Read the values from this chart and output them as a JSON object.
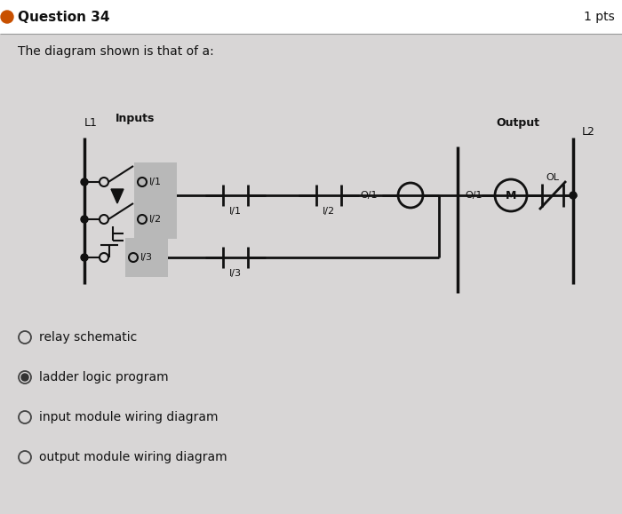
{
  "title": "Question 34",
  "pts": "1 pts",
  "subtitle": "The diagram shown is that of a:",
  "inputs_label": "Inputs",
  "output_label": "Output",
  "L1_label": "L1",
  "L2_label": "L2",
  "options": [
    {
      "text": "relay schematic",
      "selected": false
    },
    {
      "text": "ladder logic program",
      "selected": true
    },
    {
      "text": "input module wiring diagram",
      "selected": false
    },
    {
      "text": "output module wiring diagram",
      "selected": false
    }
  ],
  "bg_color": "#e0dede",
  "panel_color": "#d8d6d6",
  "line_color": "#111111",
  "text_color": "#111111",
  "label_box_color": "#bbbbbb",
  "figsize": [
    7.0,
    5.79
  ],
  "dpi": 100
}
